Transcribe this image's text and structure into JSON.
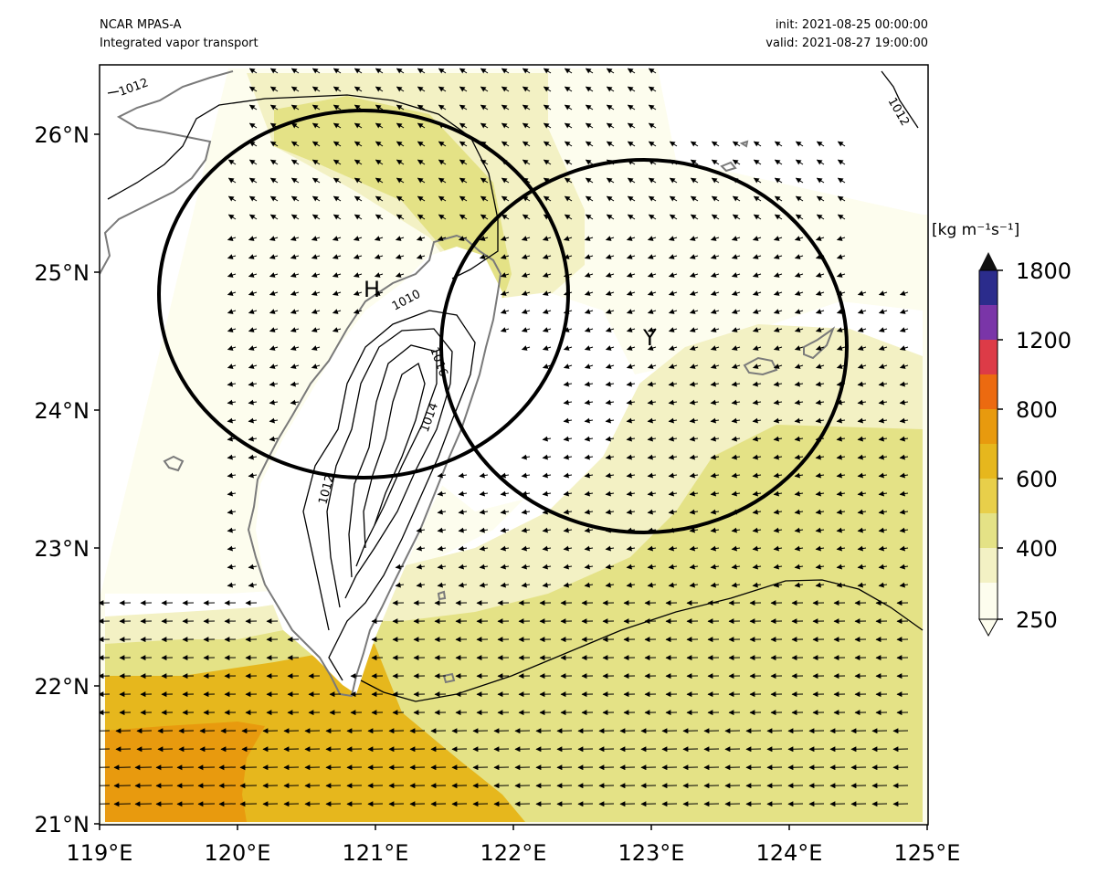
{
  "header": {
    "model": "NCAR MPAS-A",
    "field": "Integrated vapor transport",
    "init": "init: 2021-08-25 00:00:00",
    "valid": "valid: 2021-08-27 19:00:00"
  },
  "axes": {
    "x_ticks": [
      "119°E",
      "120°E",
      "121°E",
      "122°E",
      "123°E",
      "124°E",
      "125°E"
    ],
    "y_ticks": [
      "21°N",
      "22°N",
      "23°N",
      "24°N",
      "25°N",
      "26°N"
    ],
    "lon_range": [
      119,
      125
    ],
    "lat_range": [
      21,
      26.5
    ]
  },
  "colorbar": {
    "unit": "[kg m⁻¹s⁻¹]",
    "labels": [
      "250",
      "400",
      "600",
      "800",
      "1200",
      "1800"
    ],
    "colors": [
      "#fdfdee",
      "#f3f1c4",
      "#e4e286",
      "#e8cf4a",
      "#e6b71d",
      "#e89a0e",
      "#ec6a10",
      "#dd3b47",
      "#7a35a8",
      "#2b2c8c"
    ],
    "extend_top_color": "#111111"
  },
  "pressure_labels": [
    "1012",
    "1012",
    "1010",
    "1016",
    "1014",
    "1012"
  ],
  "markers": {
    "H": "H",
    "Y": "Y"
  },
  "circles": [
    {
      "name": "circle-h",
      "center_lon": 121.0,
      "center_lat": 24.85,
      "radius_deg": 1.5
    },
    {
      "name": "circle-y",
      "center_lon": 123.0,
      "center_lat": 24.45,
      "radius_deg": 1.45
    }
  ]
}
